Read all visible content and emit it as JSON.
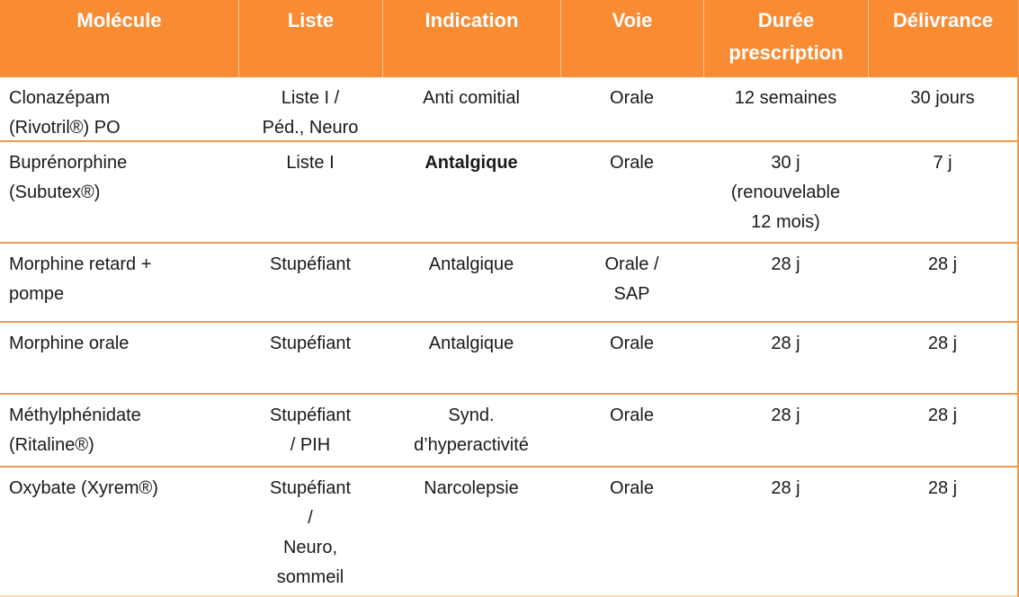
{
  "table": {
    "headers": {
      "molecule": "Molécule",
      "liste": "Liste",
      "indication": "Indication",
      "voie": "Voie",
      "duree": "Durée\nprescription",
      "delivrance": "Délivrance"
    },
    "rows": [
      {
        "molecule": "Clonazépam\n(Rivotril®) PO",
        "liste": "Liste I /\nPéd., Neuro",
        "indication": "Anti comitial",
        "voie": "Orale",
        "duree": "12 semaines",
        "delivrance": "30 jours"
      },
      {
        "molecule": "Buprénorphine\n(Subutex®)",
        "liste": "Liste I",
        "indication": "Antalgique",
        "voie": "Orale",
        "duree": "30 j\n(renouvelable\n12 mois)",
        "delivrance": "7 j"
      },
      {
        "molecule": "Morphine retard +\npompe",
        "liste": "Stupéfiant",
        "indication": "Antalgique",
        "voie": "Orale /\nSAP",
        "duree": "28 j",
        "delivrance": "28 j"
      },
      {
        "molecule": "Morphine orale",
        "liste": "Stupéfiant",
        "indication": "Antalgique",
        "voie": "Orale",
        "duree": "28 j",
        "delivrance": "28 j"
      },
      {
        "molecule": "Méthylphénidate\n(Ritaline®)",
        "liste": "Stupéfiant\n/ PIH",
        "indication": "Synd.\nd’hyperactivité",
        "voie": "Orale",
        "duree": "28 j",
        "delivrance": "28 j"
      },
      {
        "molecule": "Oxybate (Xyrem®)",
        "liste": "Stupéfiant\n/\nNeuro,\nsommeil",
        "indication": "Narcolepsie",
        "voie": "Orale",
        "duree": "28 j",
        "delivrance": "28 j"
      }
    ],
    "colors": {
      "header_bg": "#F98C33",
      "header_text": "#FFFFFF",
      "row_separator": "#F1984F",
      "bottom_border": "#FBD9B5",
      "body_text": "#1A1A1A"
    }
  }
}
